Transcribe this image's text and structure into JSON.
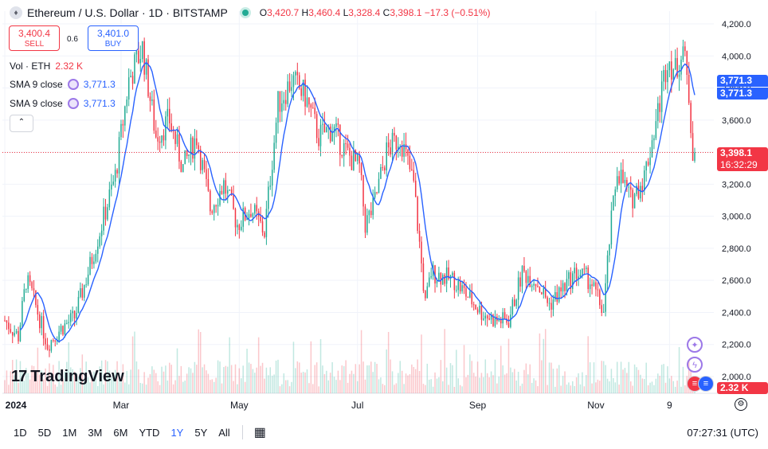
{
  "header": {
    "symbol_title": "Ethereum / U.S. Dollar · 1D · BITSTAMP",
    "ohlc": {
      "o_label": "O",
      "o_val": "3,420.7",
      "h_label": "H",
      "h_val": "3,460.4",
      "l_label": "L",
      "l_val": "3,328.4",
      "c_label": "C",
      "c_val": "3,398.1",
      "change": "−17.3 (−0.51%)"
    }
  },
  "trade": {
    "sell_price": "3,400.4",
    "sell_label": "SELL",
    "spread": "0.6",
    "buy_price": "3,401.0",
    "buy_label": "BUY"
  },
  "indicators": {
    "vol_label": "Vol · ETH",
    "vol_value": "2.32 K",
    "sma1_label": "SMA 9 close",
    "sma1_value": "3,771.3",
    "sma2_label": "SMA 9 close",
    "sma2_value": "3,771.3"
  },
  "price_axis": {
    "ticks": [
      "4,200.0",
      "4,000.0",
      "3,800.0",
      "3,600.0",
      "3,400.0",
      "3,200.0",
      "3,000.0",
      "2,800.0",
      "2,600.0",
      "2,400.0",
      "2,200.0",
      "2,000.0"
    ],
    "sma_label_1": "3,771.3",
    "sma_label_2": "3,771.3",
    "last_price": "3,398.1",
    "countdown": "16:32:29",
    "vol_label": "2.32 K"
  },
  "time_axis": [
    "2024",
    "Mar",
    "May",
    "Jul",
    "Sep",
    "Nov",
    "9"
  ],
  "watermark": "TradingView",
  "ranges": [
    "1D",
    "5D",
    "1M",
    "3M",
    "6M",
    "YTD",
    "1Y",
    "5Y",
    "All"
  ],
  "active_range": "1Y",
  "clock": "07:27:31 (UTC)",
  "colors": {
    "up": "#22ab94",
    "down": "#f23645",
    "sma": "#2962ff",
    "accent": "#2962ff"
  },
  "chart_data": {
    "type": "candlestick",
    "title": "Ethereum / U.S. Dollar · 1D · BITSTAMP",
    "ylim": [
      1950,
      4250
    ],
    "x_ticks": [
      "2024",
      "Mar",
      "May",
      "Jul",
      "Sep",
      "Nov",
      "9"
    ],
    "close_path": [
      [
        "2024-01-01",
        2350
      ],
      [
        "2024-01-08",
        2250
      ],
      [
        "2024-01-12",
        2600
      ],
      [
        "2024-01-15",
        2520
      ],
      [
        "2024-01-23",
        2200
      ],
      [
        "2024-01-30",
        2300
      ],
      [
        "2024-02-06",
        2370
      ],
      [
        "2024-02-13",
        2650
      ],
      [
        "2024-02-20",
        2950
      ],
      [
        "2024-02-27",
        3250
      ],
      [
        "2024-03-05",
        3850
      ],
      [
        "2024-03-12",
        4050
      ],
      [
        "2024-03-19",
        3500
      ],
      [
        "2024-03-26",
        3600
      ],
      [
        "2024-04-02",
        3300
      ],
      [
        "2024-04-09",
        3500
      ],
      [
        "2024-04-16",
        3050
      ],
      [
        "2024-04-23",
        3200
      ],
      [
        "2024-04-30",
        2950
      ],
      [
        "2024-05-07",
        3050
      ],
      [
        "2024-05-14",
        2900
      ],
      [
        "2024-05-21",
        3700
      ],
      [
        "2024-05-28",
        3850
      ],
      [
        "2024-06-04",
        3750
      ],
      [
        "2024-06-11",
        3500
      ],
      [
        "2024-06-18",
        3550
      ],
      [
        "2024-06-25",
        3400
      ],
      [
        "2024-07-02",
        3300
      ],
      [
        "2024-07-05",
        2950
      ],
      [
        "2024-07-09",
        3050
      ],
      [
        "2024-07-16",
        3400
      ],
      [
        "2024-07-23",
        3500
      ],
      [
        "2024-07-30",
        3200
      ],
      [
        "2024-08-05",
        2450
      ],
      [
        "2024-08-08",
        2650
      ],
      [
        "2024-08-20",
        2600
      ],
      [
        "2024-08-27",
        2500
      ],
      [
        "2024-09-03",
        2400
      ],
      [
        "2024-09-10",
        2350
      ],
      [
        "2024-09-17",
        2350
      ],
      [
        "2024-09-24",
        2650
      ],
      [
        "2024-10-01",
        2600
      ],
      [
        "2024-10-08",
        2450
      ],
      [
        "2024-10-15",
        2550
      ],
      [
        "2024-10-22",
        2650
      ],
      [
        "2024-10-29",
        2600
      ],
      [
        "2024-11-05",
        2400
      ],
      [
        "2024-11-08",
        2850
      ],
      [
        "2024-11-12",
        3300
      ],
      [
        "2024-11-19",
        3100
      ],
      [
        "2024-11-26",
        3250
      ],
      [
        "2024-12-03",
        3650
      ],
      [
        "2024-12-08",
        4000
      ],
      [
        "2024-12-12",
        3900
      ],
      [
        "2024-12-16",
        4050
      ],
      [
        "2024-12-19",
        3750
      ],
      [
        "2024-12-21",
        3420
      ],
      [
        "2024-12-22",
        3398.1
      ]
    ],
    "series": [
      {
        "name": "SMA 9 close",
        "last_value": 3771.3
      },
      {
        "name": "Vol · ETH",
        "last_value": "2.32 K"
      }
    ],
    "last_close": 3398.1
  }
}
